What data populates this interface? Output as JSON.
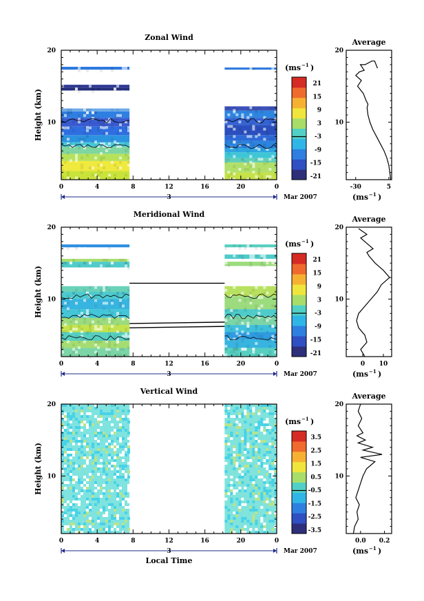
{
  "chart_data": [
    {
      "type": "heatmap",
      "title": "Zonal Wind",
      "ylabel": "Height (km)",
      "xticks": [
        "0",
        "4",
        "8",
        "12",
        "16",
        "20",
        "0"
      ],
      "yticks": [
        "10",
        "20"
      ],
      "date_label": "3",
      "month_label": "Mar 2007",
      "unit_label": "(ms",
      "unit_sup": "−1",
      "unit_close": ")",
      "colorbar_ticks": [
        "21",
        "15",
        "9",
        "3",
        "-3",
        "-9",
        "-15",
        "-21"
      ],
      "profile": {
        "title": "Average",
        "xticks": [
          "-30",
          "5"
        ],
        "xlabel": "(ms",
        "xlabel_sup": "−1",
        "xlabel_close": ")",
        "yticks": [
          "10",
          "20"
        ],
        "xlim": [
          -40,
          8
        ],
        "points": [
          [
            7,
            2
          ],
          [
            6,
            3
          ],
          [
            5,
            4
          ],
          [
            3,
            5
          ],
          [
            0,
            6
          ],
          [
            -4,
            7
          ],
          [
            -8,
            8
          ],
          [
            -12,
            9
          ],
          [
            -15,
            10
          ],
          [
            -17,
            11
          ],
          [
            -18,
            12
          ],
          [
            -17,
            12.5
          ],
          [
            -19,
            13
          ],
          [
            -22,
            14
          ],
          [
            -28,
            15
          ],
          [
            -24,
            15.8
          ],
          [
            -30,
            16.5
          ],
          [
            -26,
            17
          ],
          [
            -21,
            17.2
          ],
          [
            -25,
            18
          ],
          [
            -20,
            18
          ],
          [
            -13,
            18.5
          ],
          [
            -10,
            18.5
          ],
          [
            -7,
            17.5
          ]
        ]
      },
      "areas": [
        {
          "x0": 0,
          "x1": 7.6,
          "segs": [
            [
              2,
              3.2,
              "#c9e33a"
            ],
            [
              3.2,
              4.6,
              "#f0e93e"
            ],
            [
              4.6,
              5.6,
              "#b6e25a"
            ],
            [
              5.6,
              6.6,
              "#7fd6a0"
            ],
            [
              6.6,
              7.2,
              "#45c8d9"
            ],
            [
              7.2,
              8.2,
              "#2c93e0"
            ],
            [
              8.2,
              9.4,
              "#2f6ee0"
            ],
            [
              9.4,
              10.6,
              "#3a5bd0"
            ],
            [
              10.6,
              11.5,
              "#2f7fe2"
            ],
            [
              11.5,
              11.9,
              "#6aa9e8"
            ],
            [
              14.4,
              14.8,
              "#232e7a"
            ],
            [
              14.8,
              15.2,
              "#2f3a94"
            ],
            [
              17.3,
              17.7,
              "#2d79de"
            ]
          ]
        },
        {
          "x0": 18.2,
          "x1": 24,
          "segs": [
            [
              2,
              3,
              "#c5e24a"
            ],
            [
              3,
              4.4,
              "#b0e06a"
            ],
            [
              4.4,
              5,
              "#60cfb8"
            ],
            [
              5,
              5.8,
              "#3fc6d6"
            ],
            [
              5.8,
              6.4,
              "#2ea6e2"
            ],
            [
              6.4,
              7.4,
              "#2b83dd"
            ],
            [
              7.4,
              8.2,
              "#2d6ad8"
            ],
            [
              8.2,
              9.6,
              "#2b4fbe"
            ],
            [
              9.6,
              10.6,
              "#3462d2"
            ],
            [
              10.6,
              11.6,
              "#2d85df"
            ],
            [
              11.6,
              12.2,
              "#3b52b8"
            ],
            [
              17.3,
              17.6,
              "#2d79de"
            ]
          ]
        }
      ]
    },
    {
      "type": "heatmap",
      "title": "Meridional Wind",
      "ylabel": "Height (km)",
      "xticks": [
        "0",
        "4",
        "8",
        "12",
        "16",
        "20",
        "0"
      ],
      "yticks": [
        "10",
        "20"
      ],
      "date_label": "3",
      "month_label": "Mar 2007",
      "unit_label": "(ms",
      "unit_sup": "−1",
      "unit_close": ")",
      "colorbar_ticks": [
        "21",
        "15",
        "9",
        "3",
        "-3",
        "-9",
        "-15",
        "-21"
      ],
      "profile": {
        "title": "Average",
        "xticks": [
          "0",
          "10"
        ],
        "xlabel": "(ms",
        "xlabel_sup": "−1",
        "xlabel_close": ")",
        "yticks": [
          "10",
          "20"
        ],
        "xlim": [
          -8,
          14
        ],
        "points": [
          [
            1,
            2
          ],
          [
            -1,
            3
          ],
          [
            2,
            4
          ],
          [
            1,
            5
          ],
          [
            -2,
            6
          ],
          [
            -3,
            7
          ],
          [
            -2,
            8
          ],
          [
            1,
            9
          ],
          [
            4,
            10
          ],
          [
            7,
            11
          ],
          [
            9,
            12
          ],
          [
            13,
            13
          ],
          [
            10,
            14
          ],
          [
            6,
            15
          ],
          [
            3,
            16
          ],
          [
            2,
            16.5
          ],
          [
            5,
            17
          ],
          [
            1,
            18
          ],
          [
            -1,
            18.5
          ],
          [
            2,
            19
          ],
          [
            -2,
            19.8
          ]
        ]
      },
      "areas": [
        {
          "x0": 0,
          "x1": 7.6,
          "segs": [
            [
              2,
              3.2,
              "#7cd5a6"
            ],
            [
              3.2,
              4.2,
              "#a5dd72"
            ],
            [
              4.2,
              5.4,
              "#57cfc0"
            ],
            [
              5.4,
              6.4,
              "#c3e34e"
            ],
            [
              6.4,
              7.4,
              "#9cdc7e"
            ],
            [
              7.4,
              8.6,
              "#44c6d8"
            ],
            [
              8.6,
              10,
              "#38b4e0"
            ],
            [
              10,
              11,
              "#4dcad0"
            ],
            [
              11,
              11.8,
              "#6ad2b8"
            ],
            [
              14.4,
              15.2,
              "#4fcbca"
            ],
            [
              15.2,
              15.6,
              "#a9de6e"
            ],
            [
              17.2,
              17.6,
              "#2f8fe0"
            ]
          ]
        },
        {
          "x0": 18.2,
          "x1": 24,
          "segs": [
            [
              2,
              3.2,
              "#57cfc0"
            ],
            [
              3.2,
              4.4,
              "#38b4e0"
            ],
            [
              4.4,
              5.4,
              "#2f9be0"
            ],
            [
              5.4,
              6.4,
              "#40c0dc"
            ],
            [
              6.4,
              7.6,
              "#7cd5a6"
            ],
            [
              7.6,
              8.6,
              "#4fcbca"
            ],
            [
              8.6,
              10.4,
              "#9cdc7e"
            ],
            [
              10.4,
              11.8,
              "#b8e160"
            ],
            [
              14.6,
              15.2,
              "#9cdc7e"
            ],
            [
              15.6,
              16.2,
              "#4fcbca"
            ],
            [
              17.2,
              17.6,
              "#57cfc0"
            ]
          ]
        }
      ]
    },
    {
      "type": "heatmap",
      "title": "Vertical Wind",
      "ylabel": "Height (km)",
      "xticks": [
        "0",
        "4",
        "8",
        "12",
        "16",
        "20",
        "0"
      ],
      "xlabel": "Local Time",
      "yticks": [
        "10",
        "20"
      ],
      "date_label": "3",
      "month_label": "Mar 2007",
      "unit_label": "(ms",
      "unit_sup": "−1",
      "unit_close": ")",
      "colorbar_ticks": [
        "3.5",
        "2.5",
        "1.5",
        "0.5",
        "-0.5",
        "-1.5",
        "-2.5",
        "-3.5"
      ],
      "profile": {
        "title": "Average",
        "xticks": [
          "0.0",
          "0.2"
        ],
        "xlabel": "(ms",
        "xlabel_sup": "−1",
        "xlabel_close": ")",
        "yticks": [
          "10",
          "20"
        ],
        "xlim": [
          -0.12,
          0.26
        ],
        "points": [
          [
            -0.06,
            2
          ],
          [
            -0.05,
            3
          ],
          [
            -0.02,
            4
          ],
          [
            -0.03,
            5
          ],
          [
            -0.01,
            6
          ],
          [
            -0.04,
            7
          ],
          [
            -0.02,
            8
          ],
          [
            0.0,
            9
          ],
          [
            0.02,
            10
          ],
          [
            0.05,
            11
          ],
          [
            0.12,
            12
          ],
          [
            0.0,
            12.6
          ],
          [
            0.18,
            13
          ],
          [
            0.02,
            13.6
          ],
          [
            0.1,
            14
          ],
          [
            -0.02,
            14.6
          ],
          [
            0.04,
            15
          ],
          [
            -0.03,
            15.6
          ],
          [
            0.02,
            16
          ],
          [
            -0.02,
            17
          ],
          [
            0.01,
            18
          ],
          [
            -0.02,
            19
          ],
          [
            0.0,
            20
          ]
        ]
      },
      "areas": [
        {
          "x0": 0,
          "x1": 7.6,
          "segs": [
            [
              2,
              20,
              "#7fe3df"
            ]
          ]
        },
        {
          "x0": 18.2,
          "x1": 24,
          "segs": [
            [
              2,
              20,
              "#80e3dc"
            ]
          ]
        }
      ]
    }
  ],
  "colors": {
    "colorbar": [
      "#2e2f7a",
      "#2f4fc2",
      "#2e7fe0",
      "#2fb6e6",
      "#52d0c6",
      "#a8dd6a",
      "#f0e53c",
      "#f6b133",
      "#ef6a2c",
      "#d62a24"
    ],
    "accent_axis": "#1f2a8a"
  }
}
